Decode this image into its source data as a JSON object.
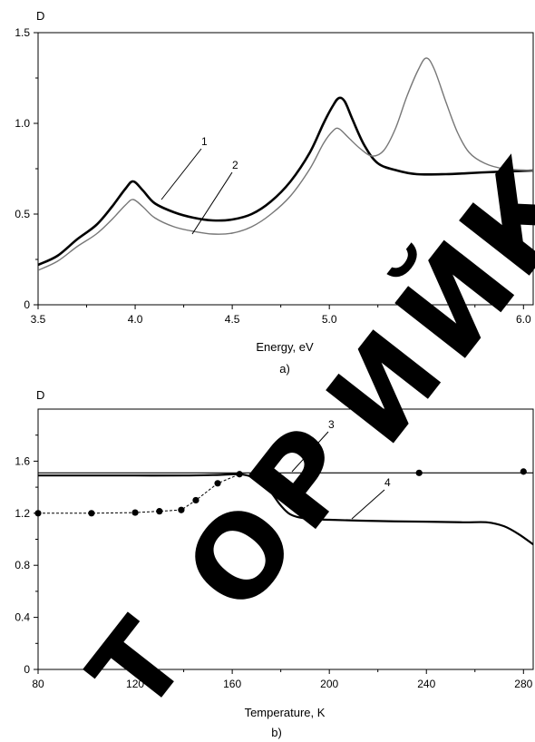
{
  "chart_data": [
    {
      "type": "line",
      "ylabel": "D",
      "xlabel": "Energy, eV",
      "panel_label": "a)",
      "xlim": [
        3.5,
        6.05
      ],
      "ylim": [
        0,
        1.5
      ],
      "x_ticks": [
        "3.5",
        "4.0",
        "4.5",
        "5.0",
        "5.5",
        "6.0"
      ],
      "y_ticks": [
        "0",
        "0.5",
        "1.0",
        "1.5"
      ],
      "grid": false,
      "series": [
        {
          "name": "1",
          "color": "#000000",
          "points": [
            [
              3.5,
              0.22
            ],
            [
              3.6,
              0.27
            ],
            [
              3.7,
              0.36
            ],
            [
              3.8,
              0.44
            ],
            [
              3.88,
              0.54
            ],
            [
              3.95,
              0.64
            ],
            [
              3.99,
              0.68
            ],
            [
              4.04,
              0.63
            ],
            [
              4.1,
              0.56
            ],
            [
              4.2,
              0.51
            ],
            [
              4.3,
              0.48
            ],
            [
              4.4,
              0.465
            ],
            [
              4.5,
              0.47
            ],
            [
              4.6,
              0.5
            ],
            [
              4.7,
              0.57
            ],
            [
              4.8,
              0.68
            ],
            [
              4.9,
              0.84
            ],
            [
              4.97,
              1.0
            ],
            [
              5.02,
              1.1
            ],
            [
              5.05,
              1.14
            ],
            [
              5.08,
              1.12
            ],
            [
              5.12,
              1.02
            ],
            [
              5.18,
              0.88
            ],
            [
              5.25,
              0.78
            ],
            [
              5.35,
              0.74
            ],
            [
              5.45,
              0.72
            ],
            [
              5.6,
              0.72
            ],
            [
              5.8,
              0.73
            ],
            [
              6.05,
              0.74
            ]
          ]
        },
        {
          "name": "2",
          "color": "#777777",
          "points": [
            [
              3.5,
              0.19
            ],
            [
              3.6,
              0.24
            ],
            [
              3.7,
              0.32
            ],
            [
              3.8,
              0.39
            ],
            [
              3.88,
              0.47
            ],
            [
              3.95,
              0.55
            ],
            [
              3.99,
              0.58
            ],
            [
              4.04,
              0.54
            ],
            [
              4.1,
              0.48
            ],
            [
              4.2,
              0.43
            ],
            [
              4.3,
              0.405
            ],
            [
              4.4,
              0.39
            ],
            [
              4.5,
              0.395
            ],
            [
              4.6,
              0.43
            ],
            [
              4.7,
              0.5
            ],
            [
              4.8,
              0.6
            ],
            [
              4.9,
              0.75
            ],
            [
              4.97,
              0.89
            ],
            [
              5.02,
              0.96
            ],
            [
              5.05,
              0.97
            ],
            [
              5.1,
              0.92
            ],
            [
              5.16,
              0.86
            ],
            [
              5.22,
              0.82
            ],
            [
              5.28,
              0.85
            ],
            [
              5.34,
              0.97
            ],
            [
              5.4,
              1.15
            ],
            [
              5.46,
              1.3
            ],
            [
              5.5,
              1.36
            ],
            [
              5.54,
              1.3
            ],
            [
              5.6,
              1.12
            ],
            [
              5.66,
              0.95
            ],
            [
              5.72,
              0.84
            ],
            [
              5.8,
              0.78
            ],
            [
              5.9,
              0.75
            ],
            [
              6.05,
              0.74
            ]
          ]
        }
      ],
      "annotations": [
        {
          "text": "1",
          "point": [
            4.1,
            0.56
          ]
        },
        {
          "text": "2",
          "point": [
            4.25,
            0.4
          ]
        }
      ]
    },
    {
      "type": "line",
      "ylabel": "D",
      "xlabel": "Temperature, K",
      "panel_label": "b)",
      "xlim": [
        80,
        284
      ],
      "ylim": [
        0,
        2.0
      ],
      "x_ticks": [
        "80",
        "120",
        "160",
        "200",
        "240",
        "280"
      ],
      "y_ticks": [
        "0",
        "0.4",
        "0.8",
        "1.2",
        "1.6"
      ],
      "grid": false,
      "series": [
        {
          "name": "3",
          "color": "#000000",
          "points": [
            [
              80,
              1.51
            ],
            [
              284,
              1.51
            ]
          ]
        },
        {
          "name": "4",
          "color": "#000000",
          "points": [
            [
              80,
              1.49
            ],
            [
              100,
              1.49
            ],
            [
              120,
              1.49
            ],
            [
              140,
              1.49
            ],
            [
              155,
              1.495
            ],
            [
              163,
              1.5
            ],
            [
              168,
              1.48
            ],
            [
              172,
              1.44
            ],
            [
              176,
              1.36
            ],
            [
              180,
              1.26
            ],
            [
              184,
              1.19
            ],
            [
              190,
              1.16
            ],
            [
              200,
              1.15
            ],
            [
              220,
              1.14
            ],
            [
              240,
              1.135
            ],
            [
              255,
              1.13
            ],
            [
              265,
              1.13
            ],
            [
              272,
              1.1
            ],
            [
              278,
              1.04
            ],
            [
              284,
              0.96
            ]
          ]
        },
        {
          "name": "",
          "color": "#000000",
          "marker": "dot",
          "points": [
            [
              80,
              1.2
            ],
            [
              102,
              1.2
            ],
            [
              120,
              1.205
            ],
            [
              130,
              1.215
            ],
            [
              139,
              1.225
            ],
            [
              145,
              1.3
            ],
            [
              154,
              1.43
            ],
            [
              163,
              1.5
            ],
            [
              195,
              1.56
            ],
            [
              237,
              1.51
            ],
            [
              280,
              1.52
            ]
          ]
        }
      ],
      "annotations": [
        {
          "text": "3",
          "point": [
            201,
            1.51
          ]
        },
        {
          "text": "4",
          "point": [
            210,
            1.16
          ]
        }
      ]
    }
  ],
  "watermark": {
    "text": "ТОРИЙ К",
    "color": "#000000"
  }
}
